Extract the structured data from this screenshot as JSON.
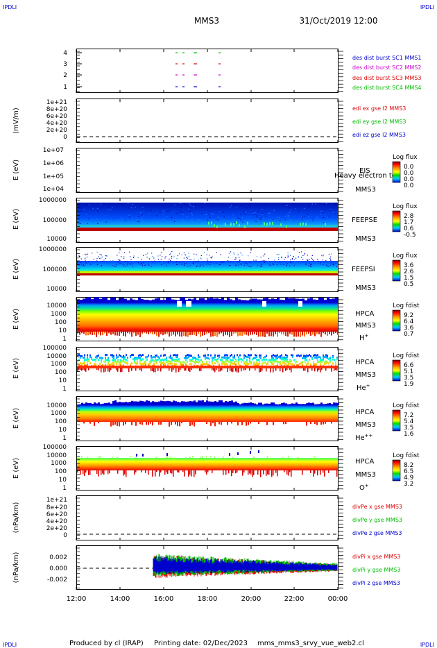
{
  "header": {
    "corner_left": "IPDLI",
    "corner_right": "IPDLI",
    "title": "MMS3",
    "datetime": "31/Oct/2019 12:00"
  },
  "footer": {
    "corner_left": "IPDLI",
    "corner_right": "IPDLI",
    "produced": "Produced by cl (IRAP)",
    "printing": "Printing date: 02/Dec/2023",
    "file": "mms_mms3_srvy_vue_web2.cl"
  },
  "colors": {
    "mms1": "#0000cc",
    "mms2": "#cc00cc",
    "mms3": "#dd0000",
    "mms4": "#00bb00",
    "dashed": "#000000"
  },
  "chart_data": {
    "type": "multi-panel time series / spectrogram",
    "x_ticks": [
      "12:00",
      "14:00",
      "16:00",
      "18:00",
      "20:00",
      "22:00",
      "00:00"
    ],
    "x_range": [
      "12:00",
      "00:00"
    ],
    "panels": [
      {
        "id": "burst",
        "type": "markers",
        "y_ticks": [
          "1",
          "2",
          "3",
          "4"
        ],
        "legend": [
          {
            "text": "des dist burst SC1 MMS1",
            "color": "#0000cc"
          },
          {
            "text": "des dist burst SC2 MMS2",
            "color": "#cc00cc"
          },
          {
            "text": "des dist burst SC3 MMS3",
            "color": "#dd0000"
          },
          {
            "text": "des dist burst SC4 MMS4",
            "color": "#00bb00"
          }
        ]
      },
      {
        "id": "edi",
        "type": "line",
        "ylabel": "(mV/m)",
        "y_ticks": [
          "0",
          "2e+20",
          "4e+20",
          "6e+20",
          "8e+20",
          "1e+21"
        ],
        "legend": [
          {
            "text": "edi ex gse l2 MMS3",
            "color": "#dd0000"
          },
          {
            "text": "edi ey gse l2 MMS3",
            "color": "#00bb00"
          },
          {
            "text": "edi ez gse l2 MMS3",
            "color": "#0000cc"
          }
        ]
      },
      {
        "id": "eis",
        "type": "heatmap",
        "ylabel": "E (eV)",
        "y_ticks": [
          "1e+04",
          "1e+05",
          "1e+06",
          "1e+07"
        ],
        "instrument": "EIS",
        "sc": "MMS3",
        "overlay": "Heavy electron tof",
        "colorbar_title": "Log flux",
        "colorbar_ticks": [
          "0.0",
          "0.0",
          "0.0",
          "0.0"
        ]
      },
      {
        "id": "feepse",
        "type": "heatmap",
        "ylabel": "E (eV)",
        "y_ticks": [
          "10000",
          "100000",
          "1000000"
        ],
        "instrument": "FEEPSE",
        "sc": "MMS3",
        "colorbar_title": "Log flux",
        "colorbar_ticks": [
          "2.8",
          "1.7",
          "0.6",
          "-0.5"
        ]
      },
      {
        "id": "feepsi",
        "type": "heatmap",
        "ylabel": "E (eV)",
        "y_ticks": [
          "10000",
          "100000",
          "1000000"
        ],
        "instrument": "FEEPSI",
        "sc": "MMS3",
        "colorbar_title": "Log flux",
        "colorbar_ticks": [
          "3.6",
          "2.6",
          "1.5",
          "0.5"
        ]
      },
      {
        "id": "hpca_h",
        "type": "heatmap",
        "ylabel": "E (eV)",
        "y_ticks": [
          "1",
          "10",
          "100",
          "1000",
          "10000"
        ],
        "instrument": "HPCA",
        "sc": "MMS3",
        "species": "H",
        "species_sup": "+",
        "colorbar_title": "Log fdist",
        "colorbar_ticks": [
          "9.2",
          "6.4",
          "3.6",
          "0.7"
        ]
      },
      {
        "id": "hpca_he",
        "type": "heatmap",
        "ylabel": "E (eV)",
        "y_ticks": [
          "1",
          "10",
          "100",
          "1000",
          "10000",
          "100000"
        ],
        "instrument": "HPCA",
        "sc": "MMS3",
        "species": "He",
        "species_sup": "+",
        "colorbar_title": "Log fdist",
        "colorbar_ticks": [
          "6.6",
          "5.1",
          "3.5",
          "1.9"
        ]
      },
      {
        "id": "hpca_hepp",
        "type": "heatmap",
        "ylabel": "E (eV)",
        "y_ticks": [
          "1",
          "10",
          "100",
          "1000",
          "10000"
        ],
        "instrument": "HPCA",
        "sc": "MMS3",
        "species": "He",
        "species_sup": "++",
        "colorbar_title": "Log fdist",
        "colorbar_ticks": [
          "7.2",
          "5.4",
          "3.5",
          "1.6"
        ]
      },
      {
        "id": "hpca_o",
        "type": "heatmap",
        "ylabel": "E (eV)",
        "y_ticks": [
          "1",
          "10",
          "100",
          "1000",
          "10000",
          "100000"
        ],
        "instrument": "HPCA",
        "sc": "MMS3",
        "species": "O",
        "species_sup": "+",
        "colorbar_title": "Log fdist",
        "colorbar_ticks": [
          "8.2",
          "6.5",
          "4.9",
          "3.2"
        ]
      },
      {
        "id": "divpe",
        "type": "line",
        "ylabel": "(nPa/km)",
        "y_ticks": [
          "0",
          "2e+20",
          "4e+20",
          "6e+20",
          "8e+20",
          "1e+21"
        ],
        "legend": [
          {
            "text": "divPe x gse MMS3",
            "color": "#dd0000"
          },
          {
            "text": "divPe y gse MMS3",
            "color": "#00bb00"
          },
          {
            "text": "divPe z gse MMS3",
            "color": "#0000cc"
          }
        ]
      },
      {
        "id": "divpi",
        "type": "line",
        "ylabel": "(nPa/km)",
        "y_ticks": [
          "-0.002",
          "0.000",
          "0.002"
        ],
        "data_start": "15:30",
        "legend": [
          {
            "text": "divPi x gse MMS3",
            "color": "#dd0000"
          },
          {
            "text": "divPi y gse MMS3",
            "color": "#00bb00"
          },
          {
            "text": "divPi z gse MMS3",
            "color": "#0000cc"
          }
        ]
      }
    ]
  }
}
